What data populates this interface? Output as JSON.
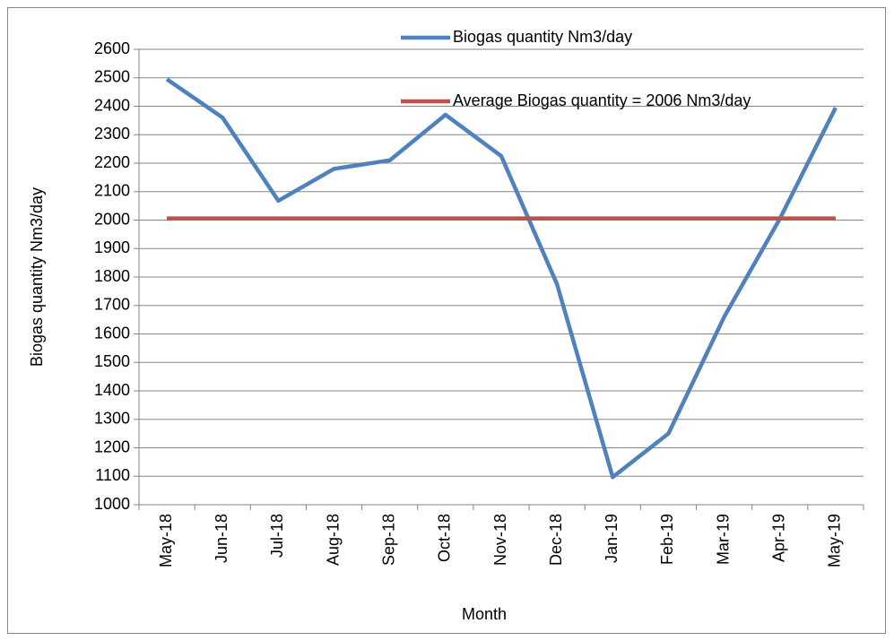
{
  "chart_data": {
    "type": "line",
    "x_label": "Month",
    "y_label": "Biogas quantity Nm3/day",
    "categories": [
      "May-18",
      "Jun-18",
      "Jul-18",
      "Aug-18",
      "Sep-18",
      "Oct-18",
      "Nov-18",
      "Dec-18",
      "Jan-19",
      "Feb-19",
      "Mar-19",
      "Apr-19",
      "May-19"
    ],
    "series": [
      {
        "name": "Biogas quantity Nm3/day",
        "color": "#4f81bd",
        "values": [
          2495,
          2360,
          2068,
          2180,
          2210,
          2370,
          2225,
          1775,
          1097,
          1250,
          1660,
          2005,
          2395
        ]
      },
      {
        "name": "Average Biogas quantity = 2006 Nm3/day",
        "color": "#c0504d",
        "values": [
          2006,
          2006,
          2006,
          2006,
          2006,
          2006,
          2006,
          2006,
          2006,
          2006,
          2006,
          2006,
          2006
        ]
      }
    ],
    "ylim": [
      1000,
      2600
    ],
    "yticks": [
      1000,
      1100,
      1200,
      1300,
      1400,
      1500,
      1600,
      1700,
      1800,
      1900,
      2000,
      2100,
      2200,
      2300,
      2400,
      2500,
      2600
    ],
    "grid": true
  }
}
